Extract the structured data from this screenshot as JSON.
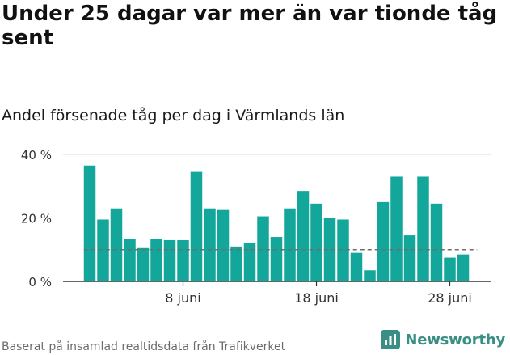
{
  "title": "Under 25 dagar var mer än var tionde tåg sent",
  "subtitle": "Andel försenade tåg per dag i Värmlands län",
  "source": "Baserat på insamlad realtidsdata från Trafikverket",
  "brand": {
    "name": "Newsworthy",
    "icon": "newsworthy-logo-icon"
  },
  "colors": {
    "bar": "#13a69a",
    "reference": "#6e6e6e",
    "grid": "#d9d9d9",
    "axis": "#333333",
    "brand": "#3a8f84"
  },
  "chart_data": {
    "type": "bar",
    "title": "Andel försenade tåg per dag i Värmlands län",
    "x": [
      1,
      2,
      3,
      4,
      5,
      6,
      7,
      8,
      9,
      10,
      11,
      12,
      13,
      14,
      15,
      16,
      17,
      18,
      19,
      20,
      21,
      22,
      23,
      24,
      25,
      26,
      27,
      28,
      29,
      30
    ],
    "values": [
      36.5,
      19.5,
      23,
      13.5,
      10.5,
      13.5,
      13,
      13,
      34.5,
      23,
      22.5,
      11,
      12,
      20.5,
      14,
      23,
      28.5,
      24.5,
      20,
      19.5,
      9,
      3.5,
      25,
      33,
      14.5,
      33,
      24.5,
      7.5,
      8.5,
      null
    ],
    "ylim": [
      0,
      40
    ],
    "yticks": [
      0,
      20,
      40
    ],
    "ytick_labels": [
      "0 %",
      "20 %",
      "40 %"
    ],
    "xticks": [
      8,
      18,
      28
    ],
    "xtick_labels": [
      "8 juni",
      "18 juni",
      "28 juni"
    ],
    "reference_line": 10,
    "grid": true
  }
}
